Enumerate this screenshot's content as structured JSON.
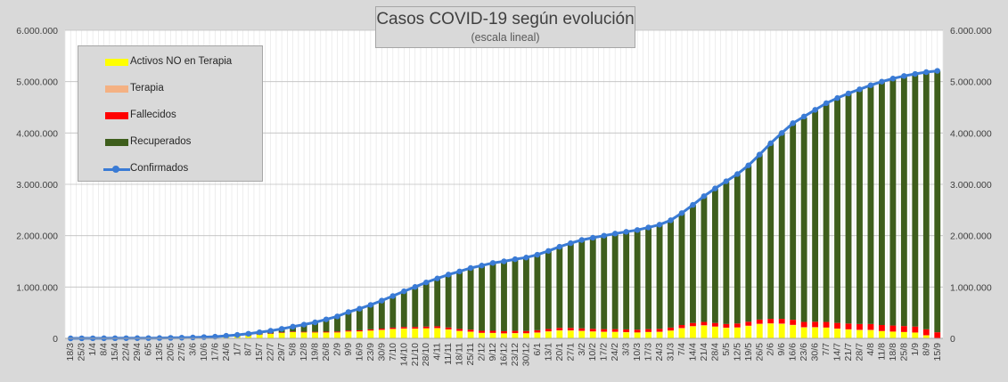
{
  "chart_data": {
    "type": "area",
    "title": "Casos COVID-19 según evolución",
    "subtitle": "(escala lineal)",
    "ylim": [
      0,
      6000000
    ],
    "y_ticks": [
      "0",
      "1.000.000",
      "2.000.000",
      "3.000.000",
      "4.000.000",
      "5.000.000",
      "6.000.000"
    ],
    "y_tick_values": [
      0,
      1000000,
      2000000,
      3000000,
      4000000,
      5000000,
      6000000
    ],
    "grid": true,
    "legend_position": "top-left",
    "x": [
      "18/3",
      "25/3",
      "1/4",
      "8/4",
      "15/4",
      "22/4",
      "29/4",
      "6/5",
      "13/5",
      "20/5",
      "27/5",
      "3/6",
      "10/6",
      "17/6",
      "24/6",
      "1/7",
      "8/7",
      "15/7",
      "22/7",
      "29/7",
      "5/8",
      "12/8",
      "19/8",
      "26/8",
      "2/9",
      "9/9",
      "16/9",
      "23/9",
      "30/9",
      "7/10",
      "14/10",
      "21/10",
      "28/10",
      "4/11",
      "11/11",
      "18/11",
      "25/11",
      "2/12",
      "9/12",
      "16/12",
      "23/12",
      "30/12",
      "6/1",
      "13/1",
      "20/1",
      "27/1",
      "3/2",
      "10/2",
      "17/2",
      "24/2",
      "3/3",
      "10/3",
      "17/3",
      "24/3",
      "31/3",
      "7/4",
      "14/4",
      "21/4",
      "28/4",
      "5/5",
      "12/5",
      "19/5",
      "26/5",
      "2/6",
      "9/6",
      "16/6",
      "23/6",
      "30/6",
      "7/7",
      "14/7",
      "21/7",
      "28/7",
      "4/8",
      "11/8",
      "18/8",
      "25/8",
      "1/9",
      "8/9",
      "15/9"
    ],
    "series": [
      {
        "name": "Confirmados",
        "color": "#3a7bd5",
        "values": [
          100,
          900,
          1500,
          2300,
          3000,
          3800,
          4500,
          5200,
          6900,
          9800,
          13000,
          18000,
          25000,
          33000,
          50000,
          67000,
          90000,
          119000,
          148000,
          186000,
          228000,
          268000,
          312000,
          370000,
          428000,
          513000,
          577000,
          652000,
          736000,
          825000,
          917000,
          1002000,
          1090000,
          1167000,
          1242000,
          1304000,
          1370000,
          1418000,
          1469000,
          1500000,
          1541000,
          1574000,
          1629000,
          1703000,
          1784000,
          1854000,
          1916000,
          1960000,
          2000000,
          2040000,
          2075000,
          2110000,
          2160000,
          2215000,
          2300000,
          2440000,
          2600000,
          2770000,
          2920000,
          3060000,
          3200000,
          3370000,
          3580000,
          3800000,
          4000000,
          4190000,
          4320000,
          4450000,
          4580000,
          4680000,
          4770000,
          4850000,
          4930000,
          5000000,
          5060000,
          5110000,
          5150000,
          5185000,
          5210000
        ]
      },
      {
        "name": "Recuperados",
        "color": "#3e5e1c",
        "values": [
          0,
          200,
          400,
          700,
          1000,
          1300,
          1700,
          2200,
          2500,
          3000,
          4000,
          5000,
          7000,
          10000,
          14000,
          22000,
          30000,
          40000,
          52000,
          70000,
          95000,
          140000,
          185000,
          240000,
          295000,
          360000,
          420000,
          475000,
          545000,
          615000,
          695000,
          780000,
          860000,
          930000,
          1030000,
          1120000,
          1200000,
          1270000,
          1320000,
          1360000,
          1395000,
          1430000,
          1470000,
          1520000,
          1580000,
          1650000,
          1720000,
          1775000,
          1820000,
          1860000,
          1900000,
          1940000,
          1980000,
          2030000,
          2090000,
          2180000,
          2300000,
          2450000,
          2620000,
          2780000,
          2910000,
          3050000,
          3220000,
          3420000,
          3620000,
          3830000,
          3980000,
          4120000,
          4260000,
          4380000,
          4480000,
          4570000,
          4660000,
          4740000,
          4810000,
          4870000,
          4920000,
          5010000,
          5090000
        ]
      },
      {
        "name": "Fallecidos",
        "color": "#ff0000",
        "values": [
          0,
          20,
          40,
          70,
          100,
          160,
          220,
          290,
          380,
          500,
          660,
          870,
          1120,
          1530,
          2010,
          2640,
          3410,
          4410,
          5630,
          7020,
          8590,
          10380,
          12150,
          14010,
          15900,
          17790,
          19780,
          21900,
          24290,
          25340,
          28600,
          30790,
          33070,
          35010,
          36790,
          37000,
          38470,
          39560,
          40670,
          41370,
          42480,
          43080,
          44200,
          45250,
          46500,
          47560,
          48300,
          49240,
          50120,
          51190,
          52660,
          53250,
          54010,
          55550,
          56090,
          58600,
          60540,
          63670,
          67610,
          70880,
          74930,
          76040,
          79900,
          86050,
          91500,
          98400,
          102100,
          105050,
          107670,
          109870,
          111830,
          113620,
          114520,
          115510,
          116510,
          114660,
          115430,
          116000,
          117070
        ]
      },
      {
        "name": "Terapia",
        "color": "#f4b183",
        "values": [
          5,
          25,
          45,
          70,
          95,
          110,
          125,
          150,
          190,
          240,
          300,
          430,
          500,
          650,
          760,
          970,
          1290,
          1650,
          2040,
          2380,
          2780,
          3090,
          3480,
          3870,
          4310,
          4620,
          5260,
          5920,
          6260,
          5860,
          6160,
          5880,
          5070,
          4750,
          4580,
          4530,
          4380,
          4370,
          4320,
          4270,
          4260,
          4110,
          4510,
          4930,
          5290,
          5730,
          5560,
          5180,
          4700,
          4640,
          4120,
          4050,
          3970,
          4270,
          4630,
          5680,
          6490,
          7630,
          7680,
          7590,
          7330,
          7860,
          8230,
          7850,
          7150,
          6930,
          6590,
          6130,
          5750,
          5580,
          5360,
          5180,
          4880,
          4440,
          3860,
          3220,
          2760,
          2260,
          1820
        ]
      },
      {
        "name": "Activos NO en Terapia",
        "color": "#ffff00",
        "values": [
          95,
          655,
          1015,
          1460,
          1805,
          2330,
          2455,
          2560,
          3830,
          6060,
          8040,
          12100,
          16380,
          20820,
          33230,
          41390,
          55300,
          72940,
          88330,
          106600,
          121630,
          114530,
          112370,
          112120,
          112790,
          130590,
          131960,
          148180,
          160450,
          178800,
          187240,
          185330,
          191860,
          196240,
          170630,
          142470,
          127150,
          104070,
          103010,
          94360,
          99260,
          96810,
          110290,
          132820,
          152210,
          150710,
          142140,
          131580,
          125180,
          124170,
          118220,
          112700,
          122020,
          125180,
          149280,
          195720,
          232970,
          248700,
          224710,
          201530,
          207740,
          240100,
          277870,
          286100,
          281350,
          256670,
          211310,
          212820,
          206580,
          185550,
          171810,
          161200,
          160600,
          140050,
          129630,
          122120,
          111810,
          58740,
          0
        ]
      }
    ]
  }
}
